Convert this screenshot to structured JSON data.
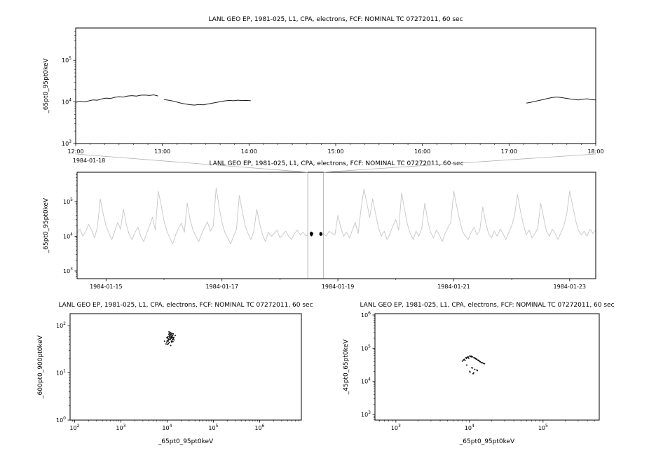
{
  "figure": {
    "background": "#ffffff",
    "frame_color": "#000000",
    "connector_color": "#b0b0b0"
  },
  "chart_data": [
    {
      "id": "top",
      "type": "line",
      "title": "LANL GEO EP, 1981-025, L1, CPA, electrons, FCF: NOMINAL TC 07272011, 60 sec",
      "ylabel": "_65pt0_95pt0keV",
      "x_offset_label": "1984-01-18",
      "xscale": "linear",
      "yscale": "log",
      "xlim": [
        12,
        18
      ],
      "ylim": [
        1000,
        600000
      ],
      "xticks": [
        {
          "v": 12,
          "label": "12:00"
        },
        {
          "v": 13,
          "label": "13:00"
        },
        {
          "v": 14,
          "label": "14:00"
        },
        {
          "v": 15,
          "label": "15:00"
        },
        {
          "v": 16,
          "label": "16:00"
        },
        {
          "v": 17,
          "label": "17:00"
        },
        {
          "v": 18,
          "label": "18:00"
        }
      ],
      "xminor_step": 0.166667,
      "line_color": "#1a1a1a",
      "line_width": 1.0,
      "y_scale": 1000,
      "segments": [
        {
          "x0": 12.0,
          "dx": 0.05,
          "y": [
            9.8,
            10.3,
            10.0,
            10.6,
            11.2,
            11.0,
            11.8,
            12.4,
            12.1,
            12.9,
            13.4,
            13.1,
            13.9,
            14.2,
            13.8,
            14.5,
            14.7,
            14.3,
            14.8,
            13.9
          ]
        },
        {
          "x0": 13.02,
          "dx": 0.05,
          "y": [
            11.4,
            11.0,
            10.5,
            9.9,
            9.3,
            8.9,
            8.6,
            8.4,
            8.7,
            8.5,
            8.9,
            9.3,
            9.7,
            10.2,
            10.6,
            10.9,
            10.7,
            11.0,
            10.8,
            10.9,
            10.7
          ]
        },
        {
          "x0": 17.2,
          "dx": 0.05,
          "y": [
            9.4,
            9.8,
            10.3,
            10.9,
            11.5,
            12.2,
            12.8,
            13.1,
            12.8,
            12.3,
            11.8,
            11.5,
            11.2,
            11.6,
            11.9,
            11.4,
            11.2
          ]
        }
      ]
    },
    {
      "id": "mid",
      "type": "line",
      "title": "LANL GEO EP, 1981-025, L1, CPA, electrons, FCF: NOMINAL TC 07272011, 60 sec",
      "ylabel": "_65pt0_95pt0keV",
      "xscale": "linear",
      "yscale": "log",
      "xlim": [
        14.5,
        23.45
      ],
      "ylim": [
        600,
        700000
      ],
      "xticks": [
        {
          "v": 15,
          "label": "1984-01-15"
        },
        {
          "v": 17,
          "label": "1984-01-17"
        },
        {
          "v": 19,
          "label": "1984-01-19"
        },
        {
          "v": 21,
          "label": "1984-01-21"
        },
        {
          "v": 23,
          "label": "1984-01-23"
        }
      ],
      "xminor_step": 1,
      "line_color": "#c6c6c6",
      "line_width": 0.9,
      "y_scale": 1000,
      "segments": [
        {
          "x0": 14.5,
          "dx": 0.05,
          "y": [
            12,
            16,
            10,
            14,
            22,
            15,
            9,
            18,
            120,
            45,
            20,
            12,
            8,
            14,
            25,
            16,
            60,
            22,
            11,
            8,
            13,
            18,
            10,
            7,
            12,
            20,
            35,
            15,
            200,
            80,
            28,
            14,
            9,
            6,
            11,
            17,
            24,
            13,
            90,
            30,
            15,
            10,
            7,
            12,
            18,
            26,
            14,
            20,
            250,
            70,
            25,
            13,
            9,
            6,
            10,
            16,
            150,
            55,
            20,
            12,
            8,
            14,
            60,
            24,
            11,
            7,
            13,
            10,
            12,
            15,
            9,
            11,
            14,
            10,
            8,
            12,
            15,
            11,
            13,
            10,
            12,
            14,
            11,
            9,
            13,
            12,
            10,
            14,
            12,
            11,
            40,
            18,
            10,
            13,
            9,
            15,
            25,
            12,
            60,
            230,
            90,
            35,
            120,
            45,
            18,
            10,
            14,
            8,
            12,
            20,
            30,
            15,
            180,
            60,
            22,
            12,
            8,
            14,
            10,
            18,
            90,
            28,
            13,
            9,
            15,
            11,
            7,
            12,
            18,
            25,
            200,
            75,
            30,
            14,
            10,
            8,
            13,
            18,
            11,
            15,
            70,
            25,
            12,
            9,
            14,
            10,
            16,
            12,
            8,
            13,
            20,
            40,
            160,
            55,
            22,
            11,
            15,
            9,
            12,
            17,
            90,
            35,
            14,
            10,
            16,
            12,
            8,
            13,
            20,
            45,
            200,
            80,
            30,
            15,
            11,
            14,
            10,
            16,
            12,
            15
          ]
        }
      ],
      "overlay_points": {
        "color": "#000000",
        "r": 1.3,
        "y_scale": 1000,
        "pts": [
          [
            18.53,
            12.0
          ],
          [
            18.535,
            11.2
          ],
          [
            18.54,
            12.8
          ],
          [
            18.545,
            10.6
          ],
          [
            18.55,
            11.8
          ],
          [
            18.555,
            11.3
          ],
          [
            18.56,
            12.2
          ],
          [
            18.695,
            11.6
          ],
          [
            18.7,
            12.6
          ],
          [
            18.705,
            10.9
          ],
          [
            18.71,
            11.9
          ],
          [
            18.715,
            12.3
          ],
          [
            18.72,
            11.3
          ]
        ]
      },
      "selection": {
        "x0": 18.48,
        "x1": 18.75,
        "color": "#b0b0b0"
      }
    },
    {
      "id": "bl",
      "type": "scatter",
      "title": "LANL GEO EP, 1981-025, L1, CPA, electrons, FCF: NOMINAL TC 07272011, 60 sec",
      "xlabel": "_65pt0_95pt0keV",
      "ylabel": "_600pt0_900pt0keV",
      "xscale": "log",
      "yscale": "log",
      "xlim": [
        80,
        8000000
      ],
      "ylim": [
        1,
        180
      ],
      "point_color": "#111111",
      "point_r": 1.0,
      "points": [
        [
          11000,
          52
        ],
        [
          12000,
          56
        ],
        [
          10500,
          47
        ],
        [
          11500,
          62
        ],
        [
          12500,
          55
        ],
        [
          13000,
          50
        ],
        [
          9800,
          45
        ],
        [
          10200,
          55
        ],
        [
          11800,
          65
        ],
        [
          12200,
          60
        ],
        [
          13500,
          52
        ],
        [
          11200,
          44
        ],
        [
          10800,
          50
        ],
        [
          12800,
          68
        ],
        [
          14000,
          57
        ],
        [
          9500,
          41
        ],
        [
          11600,
          72
        ],
        [
          12400,
          47
        ],
        [
          10400,
          58
        ],
        [
          13200,
          62
        ],
        [
          11900,
          53
        ],
        [
          12600,
          45
        ],
        [
          10900,
          66
        ],
        [
          11300,
          57
        ],
        [
          13800,
          55
        ],
        [
          10100,
          48
        ],
        [
          12100,
          70
        ],
        [
          11700,
          51
        ],
        [
          10600,
          42
        ],
        [
          12900,
          61
        ],
        [
          14200,
          50
        ],
        [
          9900,
          56
        ],
        [
          11100,
          60
        ],
        [
          12300,
          65
        ],
        [
          13400,
          46
        ],
        [
          10700,
          52
        ],
        [
          11400,
          68
        ],
        [
          12700,
          58
        ],
        [
          10300,
          40
        ],
        [
          13100,
          56
        ],
        [
          15000,
          62
        ],
        [
          8800,
          47
        ],
        [
          11000,
          74
        ],
        [
          12000,
          38
        ],
        [
          13600,
          67
        ]
      ]
    },
    {
      "id": "br",
      "type": "scatter",
      "title": "LANL GEO EP, 1981-025, L1, CPA, electrons, FCF: NOMINAL TC 07272011, 60 sec",
      "xlabel": "_65pt0_95pt0keV",
      "ylabel": "_45pt0_65pt0keV",
      "xscale": "log",
      "yscale": "log",
      "xlim": [
        520,
        580000
      ],
      "ylim": [
        680,
        1100000
      ],
      "point_color": "#111111",
      "point_r": 1.0,
      "points": [
        [
          9000,
          52000
        ],
        [
          10000,
          58000
        ],
        [
          11000,
          55000
        ],
        [
          12000,
          50000
        ],
        [
          13000,
          44000
        ],
        [
          14000,
          39000
        ],
        [
          15000,
          36000
        ],
        [
          8500,
          46000
        ],
        [
          8000,
          41000
        ],
        [
          9500,
          55000
        ],
        [
          10500,
          58000
        ],
        [
          11500,
          52000
        ],
        [
          12500,
          47000
        ],
        [
          13500,
          42000
        ],
        [
          16000,
          34000
        ],
        [
          9200,
          31000
        ],
        [
          10800,
          26000
        ],
        [
          11800,
          23000
        ],
        [
          12800,
          21000
        ],
        [
          10200,
          19000
        ],
        [
          11200,
          17000
        ],
        [
          9800,
          50000
        ],
        [
          10400,
          56000
        ],
        [
          12200,
          48000
        ],
        [
          14500,
          37000
        ],
        [
          8700,
          43000
        ],
        [
          9400,
          53000
        ],
        [
          13200,
          43000
        ],
        [
          11600,
          51000
        ],
        [
          10600,
          55000
        ],
        [
          12400,
          46000
        ],
        [
          15500,
          35000
        ],
        [
          9100,
          49000
        ],
        [
          10900,
          25000
        ],
        [
          11400,
          18000
        ],
        [
          12600,
          22000
        ],
        [
          10100,
          20000
        ],
        [
          13800,
          40000
        ],
        [
          8300,
          44000
        ],
        [
          9600,
          54000
        ]
      ]
    }
  ]
}
